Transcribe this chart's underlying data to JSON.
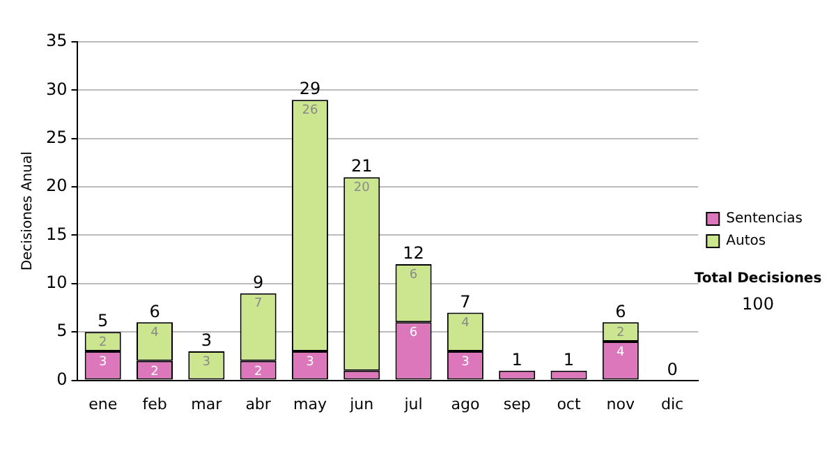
{
  "chart_data": {
    "type": "bar",
    "stacked": true,
    "ylabel": "Decisiones Anual",
    "categories": [
      "ene",
      "feb",
      "mar",
      "abr",
      "may",
      "jun",
      "jul",
      "ago",
      "sep",
      "oct",
      "nov",
      "dic"
    ],
    "series": [
      {
        "name": "Sentencias",
        "color": "#dd77bb",
        "values": [
          3,
          2,
          0,
          2,
          3,
          1,
          6,
          3,
          1,
          1,
          4,
          0
        ],
        "value_labels": [
          "3",
          "2",
          null,
          "2",
          "3",
          null,
          "6",
          "3",
          null,
          null,
          "4",
          null
        ]
      },
      {
        "name": "Autos",
        "color": "#cce68f",
        "values": [
          2,
          4,
          3,
          7,
          26,
          20,
          6,
          4,
          0,
          0,
          2,
          0
        ],
        "value_labels": [
          "2",
          "4",
          "3",
          "7",
          "26",
          "20",
          "6",
          "4",
          null,
          null,
          "2",
          null
        ]
      }
    ],
    "totals": [
      "5",
      "6",
      "3",
      "9",
      "29",
      "21",
      "12",
      "7",
      "1",
      "1",
      "6",
      "0"
    ],
    "ylim": [
      0,
      35
    ],
    "yticks": [
      0,
      5,
      10,
      15,
      20,
      25,
      30,
      35
    ],
    "grid": "y",
    "legend": "right",
    "annotations": [
      "Total Decisiones",
      "100"
    ]
  }
}
